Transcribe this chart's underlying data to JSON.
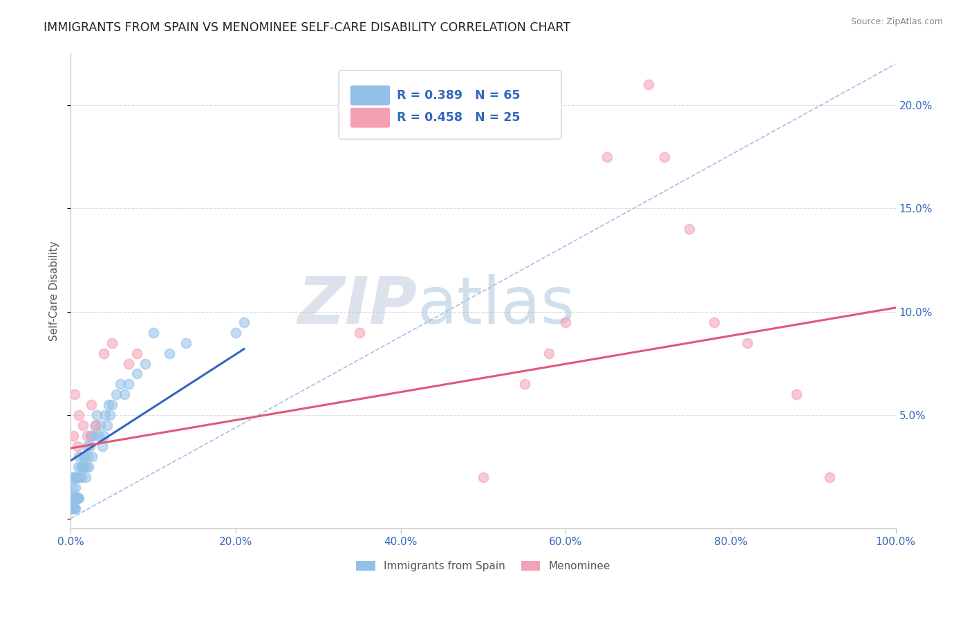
{
  "title": "IMMIGRANTS FROM SPAIN VS MENOMINEE SELF-CARE DISABILITY CORRELATION CHART",
  "source": "Source: ZipAtlas.com",
  "ylabel": "Self-Care Disability",
  "watermark_zip": "ZIP",
  "watermark_atlas": "atlas",
  "legend_blue_label": "Immigrants from Spain",
  "legend_pink_label": "Menominee",
  "blue_R": 0.389,
  "blue_N": 65,
  "pink_R": 0.458,
  "pink_N": 25,
  "blue_color": "#92C0E8",
  "pink_color": "#F4A0B5",
  "blue_line_color": "#3465C0",
  "pink_line_color": "#E05878",
  "dashed_line_color": "#A0C0E8",
  "title_color": "#222222",
  "axis_label_color": "#555555",
  "tick_color": "#3366BB",
  "source_color": "#888888",
  "grid_color": "#DDDDDD",
  "legend_color": "#3366BB",
  "xlim": [
    0.0,
    1.0
  ],
  "ylim": [
    -0.005,
    0.225
  ],
  "blue_scatter_x": [
    0.0005,
    0.001,
    0.001,
    0.0015,
    0.002,
    0.002,
    0.002,
    0.003,
    0.003,
    0.003,
    0.004,
    0.004,
    0.004,
    0.005,
    0.005,
    0.005,
    0.006,
    0.006,
    0.007,
    0.007,
    0.008,
    0.008,
    0.009,
    0.009,
    0.01,
    0.01,
    0.011,
    0.012,
    0.013,
    0.014,
    0.015,
    0.016,
    0.017,
    0.018,
    0.019,
    0.02,
    0.021,
    0.022,
    0.023,
    0.024,
    0.025,
    0.026,
    0.028,
    0.03,
    0.032,
    0.034,
    0.036,
    0.038,
    0.04,
    0.042,
    0.044,
    0.046,
    0.048,
    0.05,
    0.055,
    0.06,
    0.065,
    0.07,
    0.08,
    0.09,
    0.1,
    0.12,
    0.14,
    0.2,
    0.21
  ],
  "blue_scatter_y": [
    0.005,
    0.005,
    0.01,
    0.005,
    0.005,
    0.01,
    0.015,
    0.005,
    0.01,
    0.02,
    0.005,
    0.01,
    0.02,
    0.005,
    0.01,
    0.02,
    0.005,
    0.015,
    0.01,
    0.02,
    0.01,
    0.02,
    0.01,
    0.025,
    0.01,
    0.03,
    0.02,
    0.025,
    0.02,
    0.025,
    0.03,
    0.025,
    0.03,
    0.02,
    0.025,
    0.035,
    0.03,
    0.025,
    0.035,
    0.04,
    0.04,
    0.03,
    0.04,
    0.045,
    0.05,
    0.04,
    0.045,
    0.035,
    0.04,
    0.05,
    0.045,
    0.055,
    0.05,
    0.055,
    0.06,
    0.065,
    0.06,
    0.065,
    0.07,
    0.075,
    0.09,
    0.08,
    0.085,
    0.09,
    0.095
  ],
  "pink_scatter_x": [
    0.003,
    0.005,
    0.008,
    0.01,
    0.015,
    0.02,
    0.025,
    0.03,
    0.04,
    0.05,
    0.07,
    0.08,
    0.35,
    0.5,
    0.55,
    0.58,
    0.6,
    0.65,
    0.7,
    0.72,
    0.75,
    0.78,
    0.82,
    0.88,
    0.92
  ],
  "pink_scatter_y": [
    0.04,
    0.06,
    0.035,
    0.05,
    0.045,
    0.04,
    0.055,
    0.045,
    0.08,
    0.085,
    0.075,
    0.08,
    0.09,
    0.02,
    0.065,
    0.08,
    0.095,
    0.175,
    0.21,
    0.175,
    0.14,
    0.095,
    0.085,
    0.06,
    0.02
  ],
  "blue_trendline_x": [
    0.0,
    0.21
  ],
  "blue_trendline_y": [
    0.028,
    0.082
  ],
  "pink_trendline_x": [
    0.0,
    1.0
  ],
  "pink_trendline_y": [
    0.034,
    0.102
  ],
  "dashed_trendline_x": [
    0.0,
    1.0
  ],
  "dashed_trendline_y": [
    0.0,
    0.22
  ]
}
